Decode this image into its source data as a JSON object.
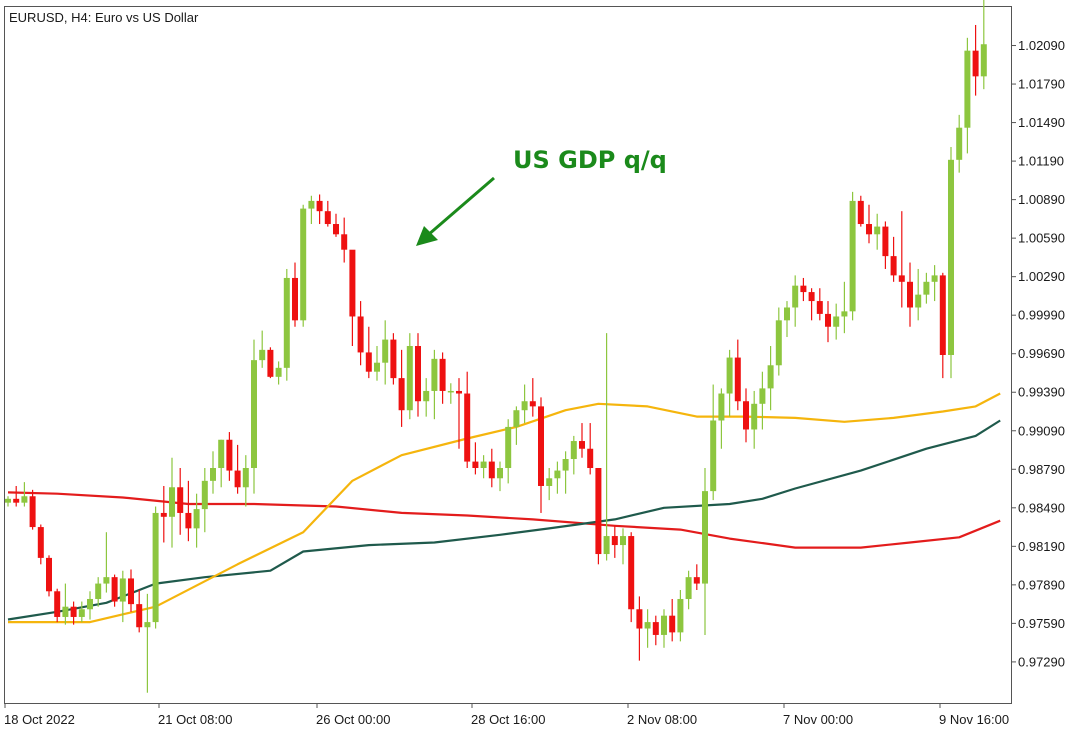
{
  "chart_data": {
    "type": "candlestick",
    "title": "EURUSD, H4:  Euro vs US Dollar",
    "annotation": "US GDP q/q",
    "ylim": [
      0.9697,
      1.0239
    ],
    "yticks": [
      "0.97290",
      "0.97590",
      "0.97890",
      "0.98190",
      "0.98490",
      "0.98790",
      "0.99090",
      "0.99390",
      "0.99690",
      "0.99990",
      "1.00290",
      "1.00590",
      "1.00890",
      "1.01190",
      "1.01490",
      "1.01790",
      "1.02090"
    ],
    "xticks": [
      "18 Oct 2022",
      "21 Oct 08:00",
      "26 Oct 00:00",
      "28 Oct 16:00",
      "2 Nov 08:00",
      "7 Nov 00:00",
      "9 Nov 16:00"
    ],
    "colors": {
      "bull": "#8dc63f",
      "bear": "#ee1111",
      "ma_fast": "#f5b50d",
      "ma_mid": "#1f5a4c",
      "ma_slow": "#e31c1c",
      "annotation": "#1b8a1b"
    },
    "candles": [
      [
        0.9853,
        0.9858,
        0.985,
        0.9856
      ],
      [
        0.9856,
        0.9866,
        0.985,
        0.9853
      ],
      [
        0.9853,
        0.9869,
        0.985,
        0.9858
      ],
      [
        0.9858,
        0.9863,
        0.9832,
        0.9834
      ],
      [
        0.9834,
        0.9836,
        0.9805,
        0.981
      ],
      [
        0.981,
        0.9812,
        0.978,
        0.9784
      ],
      [
        0.9784,
        0.9786,
        0.976,
        0.9764
      ],
      [
        0.9764,
        0.979,
        0.9758,
        0.9772
      ],
      [
        0.9772,
        0.9776,
        0.9758,
        0.9764
      ],
      [
        0.9764,
        0.9776,
        0.976,
        0.977
      ],
      [
        0.977,
        0.9784,
        0.9762,
        0.9778
      ],
      [
        0.9778,
        0.9795,
        0.9772,
        0.979
      ],
      [
        0.979,
        0.983,
        0.9783,
        0.9795
      ],
      [
        0.9795,
        0.9797,
        0.9772,
        0.9776
      ],
      [
        0.9776,
        0.98,
        0.976,
        0.9794
      ],
      [
        0.9794,
        0.9801,
        0.9768,
        0.9774
      ],
      [
        0.9774,
        0.9785,
        0.9752,
        0.9756
      ],
      [
        0.9756,
        0.9782,
        0.9705,
        0.976
      ],
      [
        0.976,
        0.985,
        0.9755,
        0.9845
      ],
      [
        0.9845,
        0.9866,
        0.9822,
        0.9842
      ],
      [
        0.9842,
        0.9888,
        0.9818,
        0.9865
      ],
      [
        0.9865,
        0.988,
        0.9828,
        0.9845
      ],
      [
        0.9845,
        0.987,
        0.9823,
        0.9833
      ],
      [
        0.9833,
        0.986,
        0.9818,
        0.9848
      ],
      [
        0.9848,
        0.988,
        0.983,
        0.987
      ],
      [
        0.987,
        0.9893,
        0.986,
        0.988
      ],
      [
        0.988,
        0.9902,
        0.9865,
        0.9902
      ],
      [
        0.9902,
        0.9908,
        0.987,
        0.9878
      ],
      [
        0.9878,
        0.9898,
        0.986,
        0.9865
      ],
      [
        0.9865,
        0.989,
        0.985,
        0.988
      ],
      [
        0.988,
        0.998,
        0.986,
        0.9964
      ],
      [
        0.9964,
        0.9987,
        0.9958,
        0.9972
      ],
      [
        0.9972,
        0.9974,
        0.995,
        0.9951
      ],
      [
        0.9951,
        0.9963,
        0.9945,
        0.9958
      ],
      [
        0.9958,
        1.0035,
        0.9948,
        1.0028
      ],
      [
        1.0028,
        1.004,
        0.999,
        0.9995
      ],
      [
        0.9995,
        1.0085,
        0.999,
        1.0082
      ],
      [
        1.0082,
        1.0092,
        1.007,
        1.0088
      ],
      [
        1.0088,
        1.0093,
        1.007,
        1.008
      ],
      [
        1.008,
        1.0088,
        1.0068,
        1.007
      ],
      [
        1.007,
        1.0078,
        1.006,
        1.0062
      ],
      [
        1.0062,
        1.0075,
        1.004,
        1.005
      ],
      [
        1.005,
        1.0045,
        0.9975,
        0.9998
      ],
      [
        0.9998,
        1.001,
        0.996,
        0.997
      ],
      [
        0.997,
        0.999,
        0.995,
        0.9955
      ],
      [
        0.9955,
        0.9975,
        0.9948,
        0.9962
      ],
      [
        0.9962,
        0.9995,
        0.9945,
        0.998
      ],
      [
        0.998,
        0.9985,
        0.9945,
        0.995
      ],
      [
        0.995,
        0.9972,
        0.9912,
        0.9925
      ],
      [
        0.9925,
        0.9985,
        0.9918,
        0.9975
      ],
      [
        0.9975,
        0.9985,
        0.992,
        0.9932
      ],
      [
        0.9932,
        0.995,
        0.992,
        0.994
      ],
      [
        0.994,
        0.9972,
        0.9918,
        0.9965
      ],
      [
        0.9965,
        0.997,
        0.993,
        0.994
      ],
      [
        0.994,
        0.9946,
        0.993,
        0.994
      ],
      [
        0.994,
        0.995,
        0.9895,
        0.9938
      ],
      [
        0.9938,
        0.9955,
        0.988,
        0.9885
      ],
      [
        0.9885,
        0.99,
        0.9875,
        0.988
      ],
      [
        0.988,
        0.989,
        0.9872,
        0.9885
      ],
      [
        0.9885,
        0.9895,
        0.9865,
        0.9872
      ],
      [
        0.9872,
        0.9885,
        0.9862,
        0.988
      ],
      [
        0.988,
        0.9918,
        0.9868,
        0.9912
      ],
      [
        0.9912,
        0.9928,
        0.9898,
        0.9925
      ],
      [
        0.9925,
        0.9945,
        0.9915,
        0.9932
      ],
      [
        0.9932,
        0.995,
        0.992,
        0.9928
      ],
      [
        0.9928,
        0.9935,
        0.9845,
        0.9866
      ],
      [
        0.9866,
        0.988,
        0.9855,
        0.9872
      ],
      [
        0.9872,
        0.9885,
        0.986,
        0.9878
      ],
      [
        0.9878,
        0.9893,
        0.986,
        0.9887
      ],
      [
        0.9887,
        0.9905,
        0.9875,
        0.9901
      ],
      [
        0.9901,
        0.9915,
        0.9888,
        0.9895
      ],
      [
        0.9895,
        0.9915,
        0.9875,
        0.988
      ],
      [
        0.988,
        0.988,
        0.9805,
        0.9813
      ],
      [
        0.9813,
        0.9985,
        0.9808,
        0.9827
      ],
      [
        0.9827,
        0.9835,
        0.981,
        0.982
      ],
      [
        0.982,
        0.9833,
        0.9805,
        0.9827
      ],
      [
        0.9827,
        0.983,
        0.976,
        0.977
      ],
      [
        0.977,
        0.978,
        0.973,
        0.9755
      ],
      [
        0.9755,
        0.977,
        0.974,
        0.976
      ],
      [
        0.976,
        0.9765,
        0.9742,
        0.975
      ],
      [
        0.975,
        0.977,
        0.974,
        0.9765
      ],
      [
        0.9765,
        0.9778,
        0.9745,
        0.9752
      ],
      [
        0.9752,
        0.9785,
        0.9745,
        0.9778
      ],
      [
        0.9778,
        0.98,
        0.977,
        0.9795
      ],
      [
        0.9795,
        0.9805,
        0.9785,
        0.979
      ],
      [
        0.979,
        0.988,
        0.975,
        0.9862
      ],
      [
        0.9862,
        0.9945,
        0.9855,
        0.9917
      ],
      [
        0.9917,
        0.9942,
        0.9895,
        0.9938
      ],
      [
        0.9938,
        0.9972,
        0.992,
        0.9966
      ],
      [
        0.9966,
        0.998,
        0.9925,
        0.9932
      ],
      [
        0.9932,
        0.9942,
        0.99,
        0.991
      ],
      [
        0.991,
        0.994,
        0.9895,
        0.993
      ],
      [
        0.993,
        0.9955,
        0.991,
        0.9942
      ],
      [
        0.9942,
        0.9975,
        0.9925,
        0.996
      ],
      [
        0.996,
        1.0005,
        0.9952,
        0.9995
      ],
      [
        0.9995,
        1.001,
        0.9982,
        1.0005
      ],
      [
        1.0005,
        1.003,
        0.999,
        1.0022
      ],
      [
        1.0022,
        1.0028,
        1.001,
        1.0017
      ],
      [
        1.0017,
        1.002,
        0.9995,
        1.001
      ],
      [
        1.001,
        1.002,
        0.9995,
        1.0
      ],
      [
        1.0,
        1.001,
        0.9978,
        0.999
      ],
      [
        0.999,
        1.0008,
        0.998,
        0.9998
      ],
      [
        0.9998,
        1.0025,
        0.9985,
        1.0002
      ],
      [
        1.0002,
        1.0095,
        0.9995,
        1.0088
      ],
      [
        1.0088,
        1.0092,
        1.0068,
        1.007
      ],
      [
        1.007,
        1.0085,
        1.0055,
        1.0062
      ],
      [
        1.0062,
        1.0078,
        1.005,
        1.0068
      ],
      [
        1.0068,
        1.0072,
        1.0035,
        1.0045
      ],
      [
        1.0045,
        1.006,
        1.0025,
        1.003
      ],
      [
        1.003,
        1.008,
        1.0005,
        1.0025
      ],
      [
        1.0025,
        1.004,
        0.999,
        1.0005
      ],
      [
        1.0005,
        1.0035,
        0.9995,
        1.0015
      ],
      [
        1.0015,
        1.0032,
        1.0008,
        1.0025
      ],
      [
        1.0025,
        1.0038,
        1.001,
        1.003
      ],
      [
        1.003,
        1.0032,
        0.995,
        0.9968
      ],
      [
        0.9968,
        1.013,
        0.995,
        1.012
      ],
      [
        1.012,
        1.0155,
        1.011,
        1.0145
      ],
      [
        1.0145,
        1.0215,
        1.0125,
        1.0205
      ],
      [
        1.0205,
        1.0225,
        1.017,
        1.0185
      ],
      [
        1.0185,
        1.0255,
        1.0175,
        1.021
      ]
    ],
    "ma_fast": [
      [
        0,
        0.976
      ],
      [
        10,
        0.976
      ],
      [
        18,
        0.9772
      ],
      [
        28,
        0.9805
      ],
      [
        36,
        0.983
      ],
      [
        42,
        0.987
      ],
      [
        48,
        0.989
      ],
      [
        56,
        0.9903
      ],
      [
        62,
        0.9912
      ],
      [
        68,
        0.9925
      ],
      [
        72,
        0.993
      ],
      [
        78,
        0.9928
      ],
      [
        84,
        0.992
      ],
      [
        90,
        0.992
      ],
      [
        96,
        0.9919
      ],
      [
        102,
        0.9916
      ],
      [
        108,
        0.9919
      ],
      [
        114,
        0.9924
      ],
      [
        118,
        0.9928
      ],
      [
        121,
        0.9938
      ]
    ],
    "ma_mid": [
      [
        0,
        0.9762
      ],
      [
        6,
        0.9768
      ],
      [
        12,
        0.9775
      ],
      [
        18,
        0.979
      ],
      [
        24,
        0.9795
      ],
      [
        32,
        0.98
      ],
      [
        36,
        0.9815
      ],
      [
        44,
        0.982
      ],
      [
        52,
        0.9822
      ],
      [
        60,
        0.9828
      ],
      [
        66,
        0.9833
      ],
      [
        74,
        0.984
      ],
      [
        80,
        0.9849
      ],
      [
        88,
        0.9852
      ],
      [
        92,
        0.9856
      ],
      [
        96,
        0.9864
      ],
      [
        104,
        0.9878
      ],
      [
        112,
        0.9895
      ],
      [
        118,
        0.9905
      ],
      [
        121,
        0.9917
      ]
    ],
    "ma_slow": [
      [
        0,
        0.9861
      ],
      [
        6,
        0.986
      ],
      [
        14,
        0.9857
      ],
      [
        22,
        0.9852
      ],
      [
        30,
        0.9852
      ],
      [
        40,
        0.985
      ],
      [
        48,
        0.9845
      ],
      [
        56,
        0.9843
      ],
      [
        64,
        0.984
      ],
      [
        74,
        0.9835
      ],
      [
        82,
        0.9832
      ],
      [
        88,
        0.9825
      ],
      [
        96,
        0.9818
      ],
      [
        104,
        0.9818
      ],
      [
        110,
        0.9822
      ],
      [
        116,
        0.9826
      ],
      [
        121,
        0.9839
      ]
    ]
  }
}
